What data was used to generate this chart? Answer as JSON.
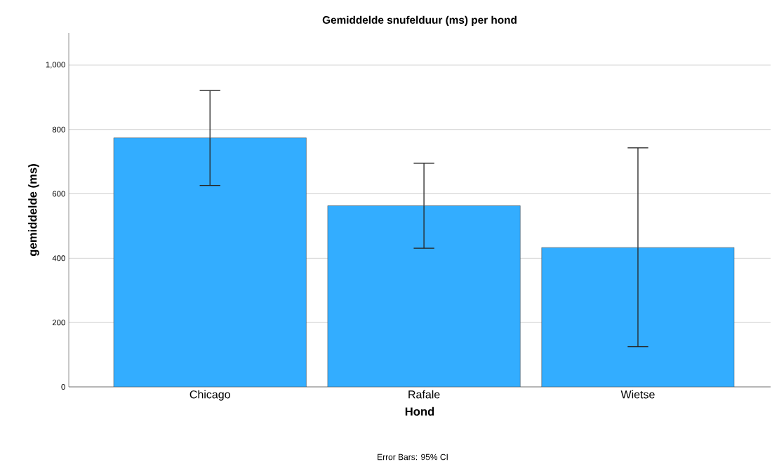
{
  "chart_data": {
    "type": "bar",
    "title": "Gemiddelde snufelduur (ms) per hond",
    "xlabel": "Hond",
    "ylabel": "gemiddelde (ms)",
    "categories": [
      "Chicago",
      "Rafale",
      "Wietse"
    ],
    "values": [
      774,
      563,
      433
    ],
    "errors": [
      [
        626,
        921
      ],
      [
        431,
        695
      ],
      [
        125,
        743
      ]
    ],
    "color": "#33adff",
    "ylim": [
      0,
      1100
    ],
    "yticks": [
      0,
      200,
      400,
      600,
      800,
      {
        "value": 1000,
        "label": "1,000"
      }
    ],
    "grid": "y",
    "annotations": [
      "Error Bars: 95% CI"
    ]
  }
}
